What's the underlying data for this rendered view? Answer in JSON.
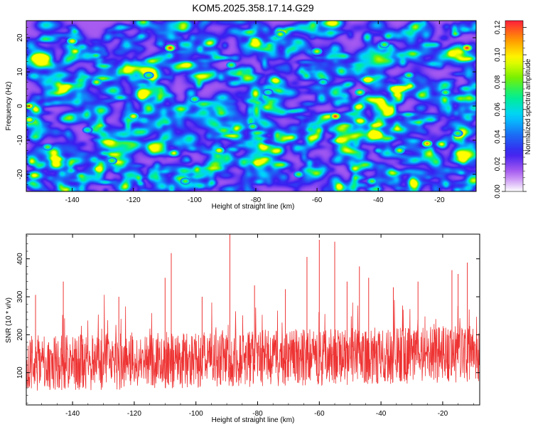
{
  "title": "KOM5.2025.358.17.14.G29",
  "chart_data": [
    {
      "type": "heatmap",
      "name": "spectrogram",
      "xlabel": "Height of straight line (km)",
      "ylabel": "Frequency (Hz)",
      "xlim": [
        -155,
        -8
      ],
      "ylim": [
        -25,
        25
      ],
      "xticks": [
        -140,
        -120,
        -100,
        -80,
        -60,
        -40,
        -20
      ],
      "yticks": [
        -20,
        -10,
        0,
        10,
        20
      ],
      "colorbar": {
        "label": "Normalized spectral amplitude",
        "range": [
          0.0,
          0.125
        ],
        "ticks": [
          0.0,
          0.02,
          0.04,
          0.06,
          0.08,
          0.1,
          0.12
        ],
        "tick_labels": [
          "0.00",
          "0.02",
          "0.04",
          "0.06",
          "0.08",
          "0.10",
          "0.12"
        ],
        "palette": [
          "#ffffff",
          "#b060f0",
          "#3a1ef0",
          "#1a6ef5",
          "#00d2ff",
          "#00f08c",
          "#78f000",
          "#ffff00",
          "#ff9600",
          "#ff1e3c"
        ]
      },
      "peaks": [
        {
          "x": -108,
          "y": 17,
          "value": 0.12
        },
        {
          "x": -11,
          "y": 17,
          "value": 0.12
        },
        {
          "x": -154,
          "y": 0,
          "value": 0.11
        },
        {
          "x": -154,
          "y": -4,
          "value": 0.1
        },
        {
          "x": -54,
          "y": -3,
          "value": 0.12
        },
        {
          "x": -24,
          "y": -11,
          "value": 0.11
        },
        {
          "x": -92,
          "y": -13,
          "value": 0.1
        },
        {
          "x": -120,
          "y": -3,
          "value": 0.1
        },
        {
          "x": -72,
          "y": 21,
          "value": 0.09
        },
        {
          "x": -132,
          "y": 7,
          "value": 0.09
        },
        {
          "x": -140,
          "y": 19,
          "value": 0.1
        },
        {
          "x": -46,
          "y": 4,
          "value": 0.09
        },
        {
          "x": -33,
          "y": -13,
          "value": 0.09
        },
        {
          "x": -100,
          "y": 2,
          "value": 0.08
        },
        {
          "x": -60,
          "y": 16,
          "value": 0.09
        },
        {
          "x": -38,
          "y": 18,
          "value": 0.08
        },
        {
          "x": -81,
          "y": -6,
          "value": 0.08
        },
        {
          "x": -115,
          "y": 9,
          "value": 0.08
        },
        {
          "x": -18,
          "y": 4,
          "value": 0.08
        },
        {
          "x": -66,
          "y": -20,
          "value": 0.08
        },
        {
          "x": -127,
          "y": -16,
          "value": 0.08
        },
        {
          "x": -88,
          "y": 12,
          "value": 0.08
        },
        {
          "x": -148,
          "y": -12,
          "value": 0.08
        },
        {
          "x": -30,
          "y": 9,
          "value": 0.08
        },
        {
          "x": -42,
          "y": -22,
          "value": 0.08
        },
        {
          "x": -103,
          "y": -22,
          "value": 0.08
        },
        {
          "x": -76,
          "y": 4,
          "value": 0.07
        },
        {
          "x": -14,
          "y": -8,
          "value": 0.08
        },
        {
          "x": -135,
          "y": -7,
          "value": 0.07
        },
        {
          "x": -58,
          "y": 7,
          "value": 0.07
        }
      ]
    },
    {
      "type": "line",
      "name": "snr",
      "xlabel": "Height of straight line (km)",
      "ylabel": "SNR (10 * v/v)",
      "xlim": [
        -155,
        -8
      ],
      "ylim": [
        15,
        465
      ],
      "xticks": [
        -140,
        -120,
        -100,
        -80,
        -60,
        -40,
        -20
      ],
      "yticks": [
        100,
        200,
        300,
        400
      ],
      "color": "#ee3333",
      "baseline": 125,
      "spikes": [
        {
          "x": -89,
          "y": 465
        },
        {
          "x": -60,
          "y": 450
        },
        {
          "x": -55,
          "y": 445
        },
        {
          "x": -108,
          "y": 415
        },
        {
          "x": -64,
          "y": 405
        },
        {
          "x": -47,
          "y": 380
        },
        {
          "x": -44,
          "y": 350
        },
        {
          "x": -143,
          "y": 340
        },
        {
          "x": -12,
          "y": 390
        },
        {
          "x": -17,
          "y": 370
        },
        {
          "x": -110,
          "y": 350
        },
        {
          "x": -28,
          "y": 340
        },
        {
          "x": -98,
          "y": 300
        },
        {
          "x": -152,
          "y": 305
        },
        {
          "x": -36,
          "y": 325
        },
        {
          "x": -81,
          "y": 330
        },
        {
          "x": -71,
          "y": 320
        },
        {
          "x": -125,
          "y": 300
        },
        {
          "x": -15,
          "y": 360
        },
        {
          "x": -51,
          "y": 340
        }
      ]
    }
  ]
}
